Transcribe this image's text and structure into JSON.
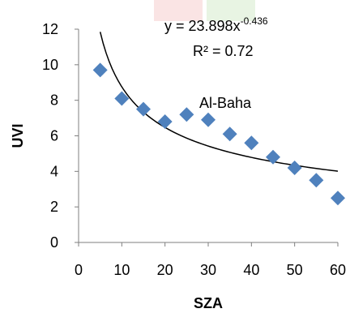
{
  "chart_data": {
    "type": "scatter",
    "xlabel": "SZA",
    "ylabel": "UVI",
    "xlim": [
      0,
      60
    ],
    "ylim": [
      0,
      12
    ],
    "xticks": [
      "0",
      "10",
      "20",
      "30",
      "40",
      "50",
      "60"
    ],
    "yticks": [
      "0",
      "2",
      "4",
      "6",
      "8",
      "10",
      "12"
    ],
    "series": [
      {
        "x": [
          5,
          10,
          15,
          20,
          25,
          30,
          35,
          40,
          45,
          50,
          55,
          60
        ],
        "y": [
          9.7,
          8.1,
          7.5,
          6.8,
          7.2,
          6.9,
          6.1,
          5.6,
          4.8,
          4.2,
          3.5,
          2.5
        ],
        "color": "#4F81BD",
        "marker": "diamond"
      }
    ],
    "trendline": {
      "type": "power",
      "a": 23.898,
      "b": -0.436,
      "x_range": [
        5,
        60
      ],
      "color": "#000000"
    },
    "annotations": {
      "equation_main": "y = 23.898x",
      "equation_exp": "-0.436",
      "r_squared": "R² = 0.72",
      "site_label": "Al-Baha"
    },
    "grid": false,
    "legend": "none"
  }
}
